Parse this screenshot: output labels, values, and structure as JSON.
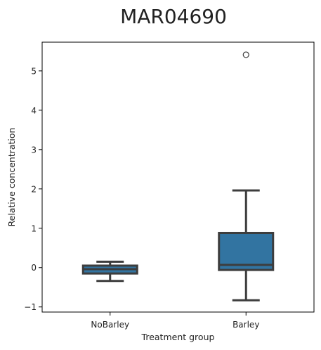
{
  "chart_data": {
    "type": "box",
    "title": "MAR04690",
    "xlabel": "Treatment group",
    "ylabel": "Relative concentration",
    "ylim": [
      -1.13,
      5.73
    ],
    "yticks": [
      -1,
      0,
      1,
      2,
      3,
      4,
      5
    ],
    "ytick_labels": [
      "−1",
      "0",
      "1",
      "2",
      "3",
      "4",
      "5"
    ],
    "categories": [
      "NoBarley",
      "Barley"
    ],
    "boxes": [
      {
        "category": "NoBarley",
        "whisker_low": -0.34,
        "q1": -0.15,
        "median": -0.04,
        "q3": 0.05,
        "whisker_high": 0.15,
        "outliers": []
      },
      {
        "category": "Barley",
        "whisker_low": -0.83,
        "q1": -0.06,
        "median": 0.07,
        "q3": 0.88,
        "whisker_high": 1.96,
        "outliers": [
          5.41
        ]
      }
    ],
    "colors": {
      "box_fill": "#3274a1",
      "line": "#3d3d3d",
      "axis": "#000000"
    },
    "grid": false,
    "legend": "none"
  }
}
